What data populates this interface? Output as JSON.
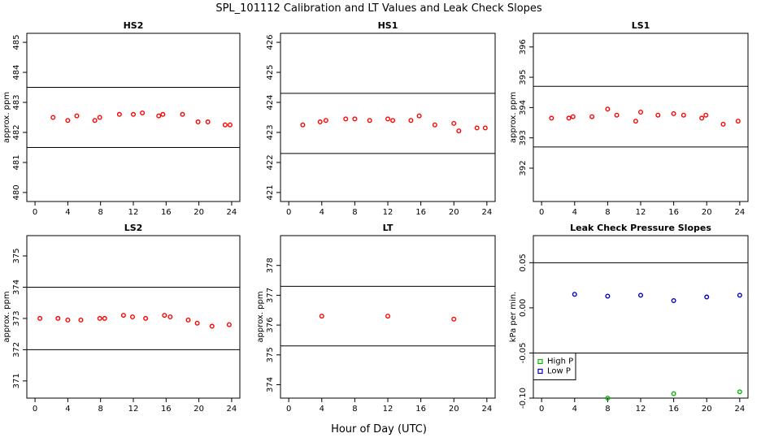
{
  "figure": {
    "title": "SPL_101112  Calibration and LT Values and Leak Check Slopes",
    "xlabel": "Hour of Day (UTC)"
  },
  "colors": {
    "points": "#ff0000",
    "high_p": "#00bb00",
    "low_p": "#0000cc",
    "lines": "#000000"
  },
  "chart_data": [
    {
      "type": "scatter",
      "title": "HS2",
      "ylabel": "approx. ppm",
      "xlim": [
        -1,
        25
      ],
      "ylim": [
        479.7,
        485.3
      ],
      "xticks": [
        0,
        4,
        8,
        12,
        16,
        20,
        24
      ],
      "yticks": [
        480,
        481,
        482,
        483,
        484,
        485
      ],
      "hlines": [
        481.5,
        483.5
      ],
      "series": [
        {
          "color": "red",
          "points": [
            [
              2.2,
              482.5
            ],
            [
              4,
              482.4
            ],
            [
              5.1,
              482.55
            ],
            [
              7.3,
              482.4
            ],
            [
              7.9,
              482.5
            ],
            [
              10.3,
              482.6
            ],
            [
              12,
              482.6
            ],
            [
              13.1,
              482.65
            ],
            [
              15.1,
              482.55
            ],
            [
              15.6,
              482.6
            ],
            [
              18,
              482.6
            ],
            [
              19.9,
              482.35
            ],
            [
              21.1,
              482.35
            ],
            [
              23.2,
              482.25
            ],
            [
              23.8,
              482.25
            ]
          ]
        }
      ]
    },
    {
      "type": "scatter",
      "title": "HS1",
      "ylabel": "",
      "xlim": [
        -1,
        25
      ],
      "ylim": [
        420.7,
        426.3
      ],
      "xticks": [
        0,
        4,
        8,
        12,
        16,
        20,
        24
      ],
      "yticks": [
        421,
        422,
        423,
        424,
        425,
        426
      ],
      "hlines": [
        422.3,
        424.3
      ],
      "series": [
        {
          "color": "red",
          "points": [
            [
              1.7,
              423.25
            ],
            [
              3.8,
              423.35
            ],
            [
              4.5,
              423.4
            ],
            [
              6.9,
              423.45
            ],
            [
              8,
              423.45
            ],
            [
              9.8,
              423.4
            ],
            [
              12,
              423.45
            ],
            [
              12.6,
              423.4
            ],
            [
              14.8,
              423.4
            ],
            [
              15.8,
              423.55
            ],
            [
              17.7,
              423.25
            ],
            [
              20,
              423.3
            ],
            [
              20.6,
              423.05
            ],
            [
              22.8,
              423.15
            ],
            [
              23.8,
              423.15
            ]
          ]
        }
      ]
    },
    {
      "type": "scatter",
      "title": "LS1",
      "ylabel": "approx. ppm",
      "xlim": [
        -1,
        25
      ],
      "ylim": [
        390.9,
        396.45
      ],
      "xticks": [
        0,
        4,
        8,
        12,
        16,
        20,
        24
      ],
      "yticks": [
        392,
        393,
        394,
        395,
        396
      ],
      "hlines": [
        392.7,
        394.7
      ],
      "series": [
        {
          "color": "red",
          "points": [
            [
              1.2,
              393.65
            ],
            [
              3.3,
              393.65
            ],
            [
              3.8,
              393.7
            ],
            [
              6.1,
              393.7
            ],
            [
              8.0,
              393.95
            ],
            [
              9.1,
              393.75
            ],
            [
              11.4,
              393.55
            ],
            [
              12,
              393.85
            ],
            [
              14.1,
              393.75
            ],
            [
              16,
              393.8
            ],
            [
              17.2,
              393.75
            ],
            [
              19.4,
              393.65
            ],
            [
              19.9,
              393.75
            ],
            [
              22,
              393.45
            ],
            [
              23.8,
              393.55
            ]
          ]
        }
      ]
    },
    {
      "type": "scatter",
      "title": "LS2",
      "ylabel": "approx. ppm",
      "xlim": [
        -1,
        25
      ],
      "ylim": [
        370.45,
        375.65
      ],
      "xticks": [
        0,
        4,
        8,
        12,
        16,
        20,
        24
      ],
      "yticks": [
        371,
        372,
        373,
        374,
        375
      ],
      "hlines": [
        372,
        374
      ],
      "series": [
        {
          "color": "red",
          "points": [
            [
              0.6,
              373
            ],
            [
              2.8,
              373
            ],
            [
              4,
              372.95
            ],
            [
              5.6,
              372.95
            ],
            [
              7.9,
              373
            ],
            [
              8.5,
              373
            ],
            [
              10.8,
              373.1
            ],
            [
              11.9,
              373.05
            ],
            [
              13.5,
              373
            ],
            [
              15.8,
              373.1
            ],
            [
              16.5,
              373.05
            ],
            [
              18.7,
              372.95
            ],
            [
              19.8,
              372.85
            ],
            [
              21.6,
              372.75
            ],
            [
              23.7,
              372.8
            ]
          ]
        }
      ]
    },
    {
      "type": "scatter",
      "title": "LT",
      "ylabel": "approx. ppm",
      "xlim": [
        -1,
        25
      ],
      "ylim": [
        373.55,
        379
      ],
      "xticks": [
        0,
        4,
        8,
        12,
        16,
        20,
        24
      ],
      "yticks": [
        374,
        375,
        376,
        377,
        378
      ],
      "hlines": [
        375.3,
        377.3
      ],
      "series": [
        {
          "color": "red",
          "points": [
            [
              4,
              376.3
            ],
            [
              12,
              376.3
            ],
            [
              20,
              376.2
            ]
          ]
        }
      ]
    },
    {
      "type": "scatter",
      "title": "Leak Check Pressure Slopes",
      "ylabel": "kPa per min.",
      "xlim": [
        -1,
        25
      ],
      "ylim": [
        -0.1,
        0.08
      ],
      "xticks": [
        0,
        4,
        8,
        12,
        16,
        20,
        24
      ],
      "yticks": [
        -0.1,
        -0.05,
        0,
        0.05
      ],
      "ytick_labels": [
        "-0.10",
        "-0.05",
        "0.00",
        "0.05"
      ],
      "hlines": [
        -0.05,
        0.05
      ],
      "legend": "bottom-left",
      "series": [
        {
          "name": "High P",
          "color": "green",
          "points": [
            [
              8,
              -0.1
            ],
            [
              16,
              -0.095
            ],
            [
              24,
              -0.093
            ]
          ]
        },
        {
          "name": "Low P",
          "color": "blue",
          "points": [
            [
              4,
              0.015
            ],
            [
              8,
              0.013
            ],
            [
              12,
              0.014
            ],
            [
              16,
              0.008
            ],
            [
              20,
              0.012
            ],
            [
              24,
              0.014
            ]
          ]
        }
      ]
    }
  ]
}
